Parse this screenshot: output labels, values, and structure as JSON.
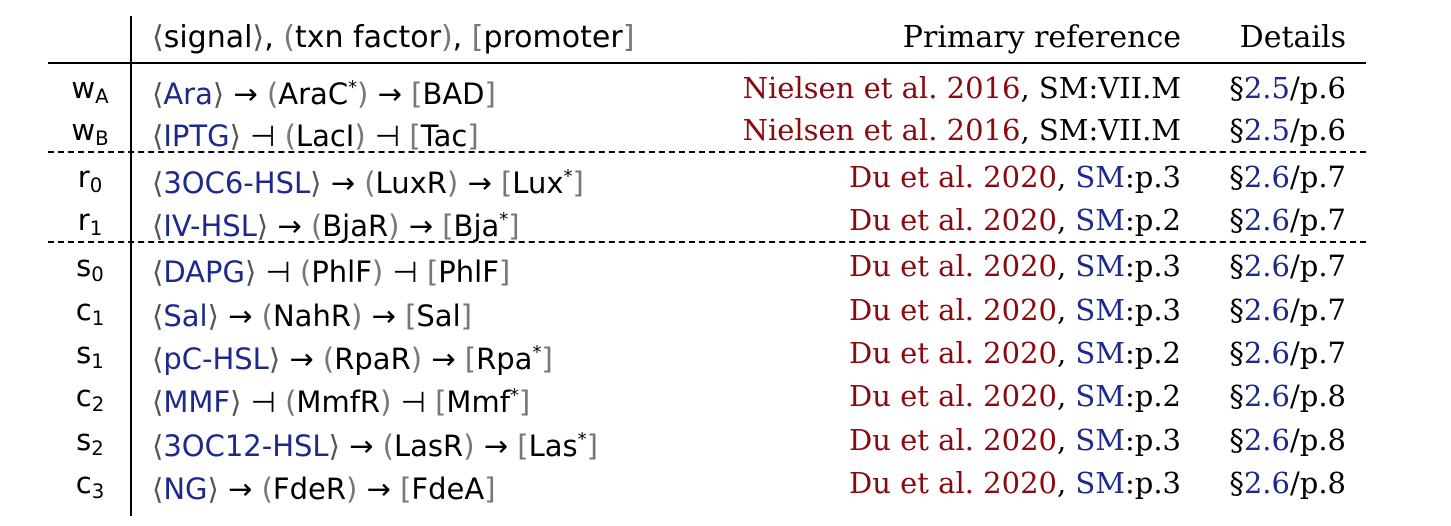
{
  "header": {
    "signal": "signal",
    "sep1": ", ",
    "factor": "txn factor",
    "sep2": ", ",
    "promoter": "promoter",
    "reference": "Primary reference",
    "details": "Details"
  },
  "colors": {
    "signal": "#1c2a8c",
    "author": "#8b0a10",
    "link": "#1c2a8c"
  },
  "rows": [
    {
      "label": "w",
      "sub": "A",
      "signal": "Ara",
      "arrow1": "→",
      "factor": "AraC",
      "factor_sup": "*",
      "arrow2": "→",
      "promoter": "BAD",
      "promoter_sup": "",
      "author": "Nielsen et al. 2016",
      "ref_sep": ", ",
      "sm": "SM:VII.M",
      "sm_link": "",
      "page": "",
      "sec_sym": "§",
      "sec": "2.5",
      "det_page": "/p.6"
    },
    {
      "label": "w",
      "sub": "B",
      "signal": "IPTG",
      "arrow1": "⊣",
      "factor": "LacI",
      "factor_sup": "",
      "arrow2": "⊣",
      "promoter": "Tac",
      "promoter_sup": "",
      "author": "Nielsen et al. 2016",
      "ref_sep": ", ",
      "sm": "SM:VII.M",
      "sm_link": "",
      "page": "",
      "sec_sym": "§",
      "sec": "2.5",
      "det_page": "/p.6"
    },
    {
      "label": "r",
      "sub": "0",
      "signal": "3OC6-HSL",
      "arrow1": "→",
      "factor": "LuxR",
      "factor_sup": "",
      "arrow2": "→",
      "promoter": "Lux",
      "promoter_sup": "*",
      "author": "Du et al. 2020",
      "ref_sep": ", ",
      "sm": "",
      "sm_link": "SM",
      "page": ":p.3",
      "sec_sym": "§",
      "sec": "2.6",
      "det_page": "/p.7"
    },
    {
      "label": "r",
      "sub": "1",
      "signal": "IV-HSL",
      "arrow1": "→",
      "factor": "BjaR",
      "factor_sup": "",
      "arrow2": "→",
      "promoter": "Bja",
      "promoter_sup": "*",
      "author": "Du et al. 2020",
      "ref_sep": ", ",
      "sm": "",
      "sm_link": "SM",
      "page": ":p.2",
      "sec_sym": "§",
      "sec": "2.6",
      "det_page": "/p.7"
    },
    {
      "label": "s",
      "sub": "0",
      "signal": "DAPG",
      "arrow1": "⊣",
      "factor": "PhlF",
      "factor_sup": "",
      "arrow2": "⊣",
      "promoter": "PhlF",
      "promoter_sup": "",
      "author": "Du et al. 2020",
      "ref_sep": ", ",
      "sm": "",
      "sm_link": "SM",
      "page": ":p.3",
      "sec_sym": "§",
      "sec": "2.6",
      "det_page": "/p.7"
    },
    {
      "label": "c",
      "sub": "1",
      "signal": "Sal",
      "arrow1": "→",
      "factor": "NahR",
      "factor_sup": "",
      "arrow2": "→",
      "promoter": "Sal",
      "promoter_sup": "",
      "author": "Du et al. 2020",
      "ref_sep": ", ",
      "sm": "",
      "sm_link": "SM",
      "page": ":p.3",
      "sec_sym": "§",
      "sec": "2.6",
      "det_page": "/p.7"
    },
    {
      "label": "s",
      "sub": "1",
      "signal": "pC-HSL",
      "arrow1": "→",
      "factor": "RpaR",
      "factor_sup": "",
      "arrow2": "→",
      "promoter": "Rpa",
      "promoter_sup": "*",
      "author": "Du et al. 2020",
      "ref_sep": ", ",
      "sm": "",
      "sm_link": "SM",
      "page": ":p.2",
      "sec_sym": "§",
      "sec": "2.6",
      "det_page": "/p.7"
    },
    {
      "label": "c",
      "sub": "2",
      "signal": "MMF",
      "arrow1": "⊣",
      "factor": "MmfR",
      "factor_sup": "",
      "arrow2": "⊣",
      "promoter": "Mmf",
      "promoter_sup": "*",
      "author": "Du et al. 2020",
      "ref_sep": ", ",
      "sm": "",
      "sm_link": "SM",
      "page": ":p.2",
      "sec_sym": "§",
      "sec": "2.6",
      "det_page": "/p.8"
    },
    {
      "label": "s",
      "sub": "2",
      "signal": "3OC12-HSL",
      "arrow1": "→",
      "factor": "LasR",
      "factor_sup": "",
      "arrow2": "→",
      "promoter": "Las",
      "promoter_sup": "*",
      "author": "Du et al. 2020",
      "ref_sep": ", ",
      "sm": "",
      "sm_link": "SM",
      "page": ":p.3",
      "sec_sym": "§",
      "sec": "2.6",
      "det_page": "/p.8"
    },
    {
      "label": "c",
      "sub": "3",
      "signal": "NG",
      "arrow1": "→",
      "factor": "FdeR",
      "factor_sup": "",
      "arrow2": "→",
      "promoter": "FdeA",
      "promoter_sup": "",
      "author": "Du et al. 2020",
      "ref_sep": ", ",
      "sm": "",
      "sm_link": "SM",
      "page": ":p.3",
      "sec_sym": "§",
      "sec": "2.6",
      "det_page": "/p.8"
    }
  ]
}
